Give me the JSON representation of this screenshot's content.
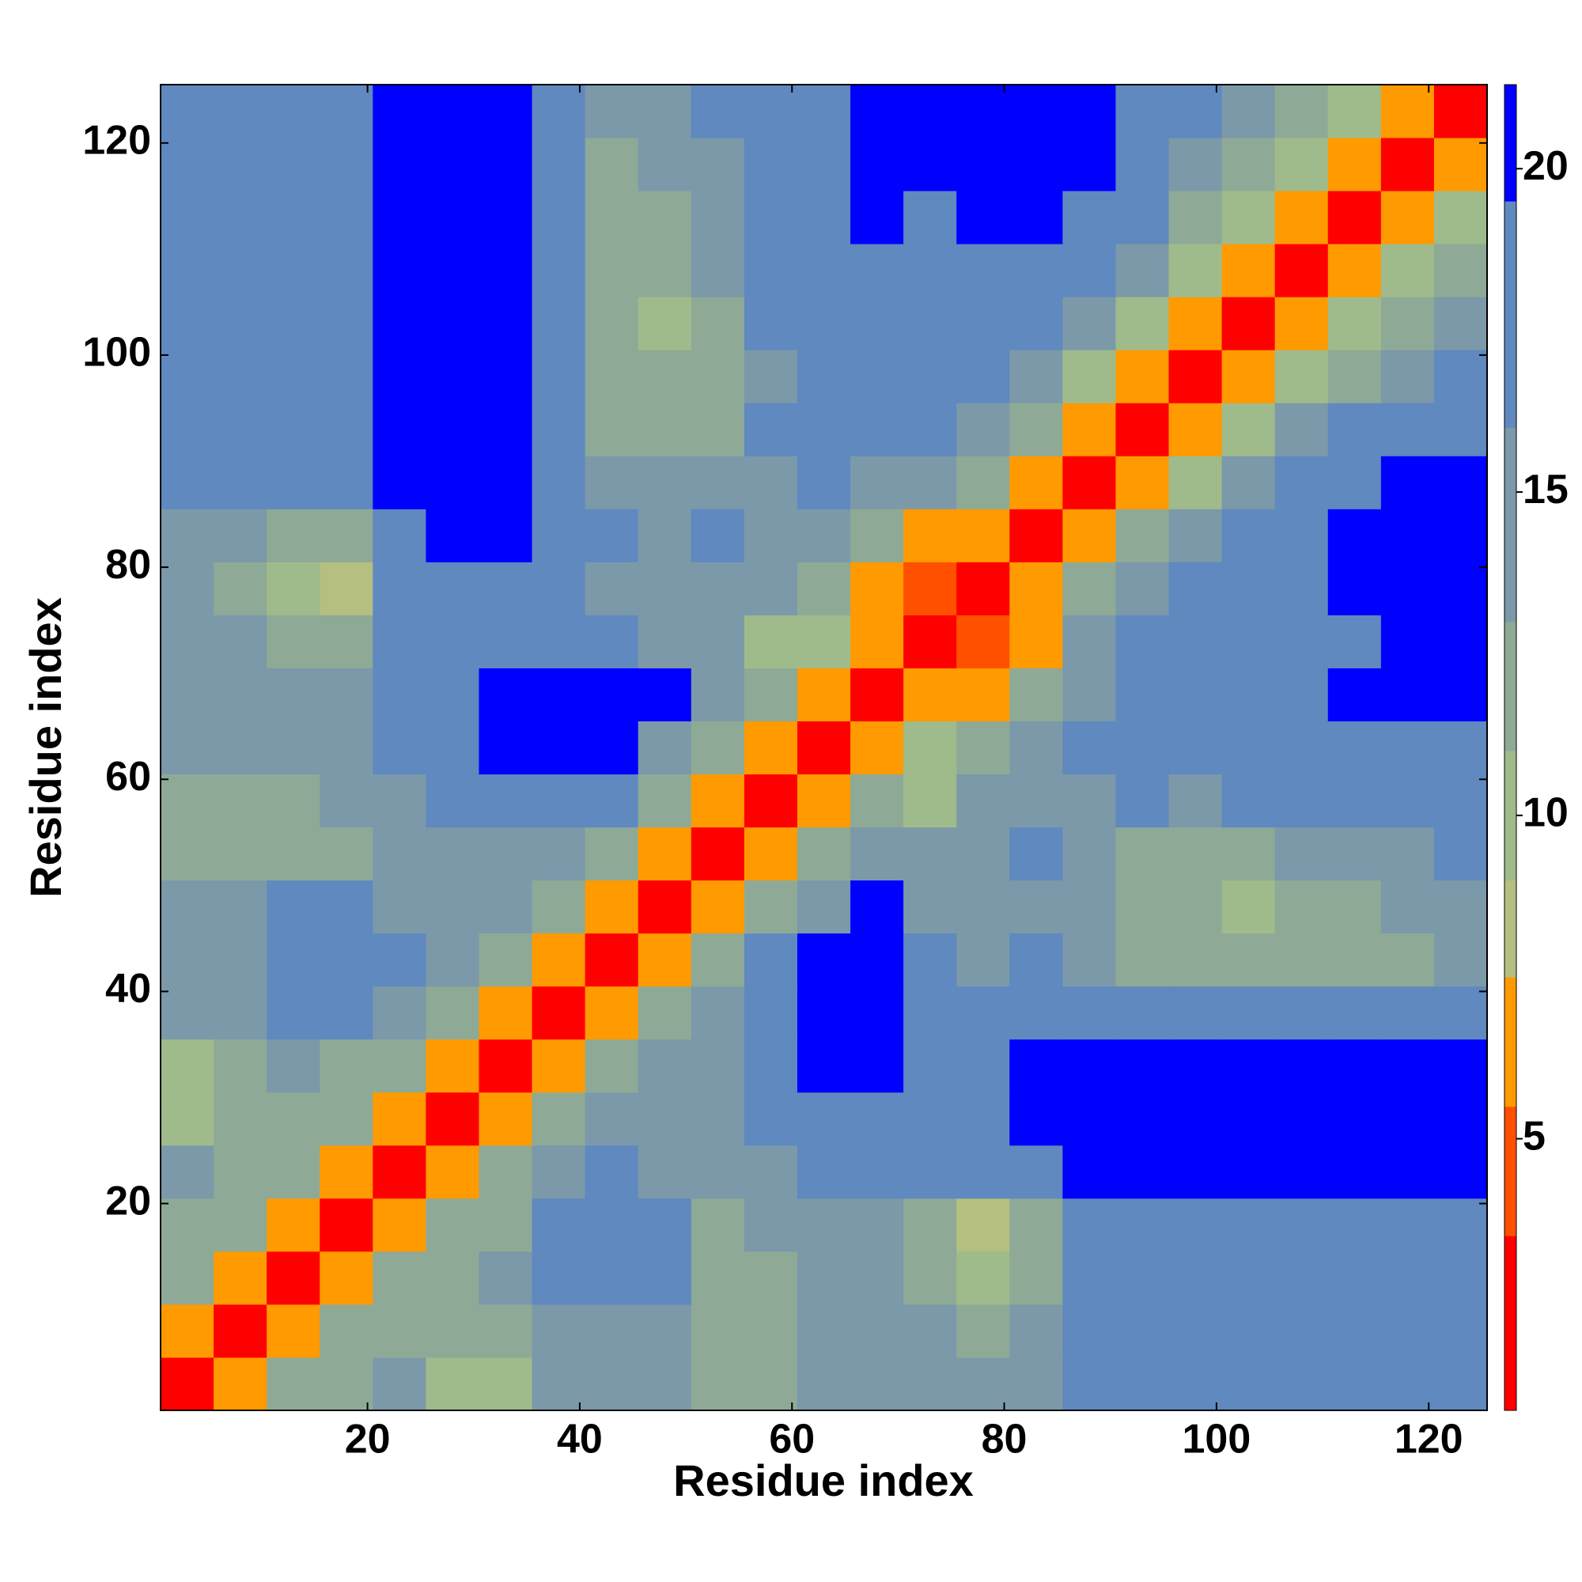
{
  "chart_data": {
    "type": "heatmap",
    "xlabel": "Residue index",
    "ylabel": "Residue index",
    "x": [
      3,
      8,
      13,
      18,
      23,
      28,
      33,
      38,
      43,
      48,
      53,
      58,
      63,
      68,
      73,
      78,
      83,
      88,
      93,
      98,
      103,
      108,
      113,
      118,
      123
    ],
    "y": [
      3,
      8,
      13,
      18,
      23,
      28,
      33,
      38,
      43,
      48,
      53,
      58,
      63,
      68,
      73,
      78,
      83,
      88,
      93,
      98,
      103,
      108,
      113,
      118,
      123
    ],
    "z": [
      [
        2,
        7,
        11,
        12,
        13,
        10,
        10,
        15,
        15,
        15,
        11,
        11,
        13,
        13,
        13,
        13,
        13,
        19,
        19,
        19,
        19,
        19,
        19,
        19,
        19
      ],
      [
        7,
        2,
        7,
        11,
        12,
        11,
        12,
        15,
        15,
        15,
        11,
        12,
        13,
        13,
        13,
        12,
        13,
        19,
        19,
        19,
        19,
        19,
        19,
        19,
        19
      ],
      [
        11,
        7,
        2,
        7,
        11,
        12,
        13,
        17,
        19,
        17,
        12,
        12,
        13,
        13,
        12,
        9,
        12,
        19,
        19,
        19,
        19,
        19,
        19,
        19,
        19
      ],
      [
        12,
        11,
        7,
        2,
        7,
        11,
        12,
        16,
        18,
        16,
        12,
        13,
        13,
        13,
        11,
        8,
        11,
        19,
        19,
        19,
        19,
        19,
        19,
        19,
        19
      ],
      [
        13,
        12,
        11,
        7,
        2,
        7,
        11,
        13,
        16,
        15,
        13,
        14,
        17,
        18,
        17,
        16,
        19,
        20,
        20,
        20,
        20,
        20,
        20,
        20,
        20
      ],
      [
        10,
        11,
        12,
        11,
        7,
        2,
        7,
        11,
        13,
        14,
        14,
        16,
        17,
        18,
        19,
        19,
        20,
        20,
        20,
        20,
        20,
        20,
        20,
        20,
        20
      ],
      [
        10,
        12,
        13,
        12,
        11,
        7,
        2,
        7,
        11,
        13,
        14,
        18,
        20,
        20,
        19,
        19,
        20,
        20,
        20,
        20,
        20,
        20,
        20,
        20,
        20
      ],
      [
        15,
        15,
        17,
        16,
        13,
        11,
        7,
        2,
        7,
        11,
        14,
        19,
        21,
        21,
        19,
        18,
        17,
        17,
        18,
        17,
        17,
        17,
        17,
        18,
        18
      ],
      [
        15,
        15,
        19,
        18,
        16,
        13,
        11,
        7,
        2,
        7,
        11,
        16,
        21,
        21,
        16,
        15,
        16,
        15,
        12,
        11,
        12,
        11,
        11,
        11,
        14
      ],
      [
        15,
        15,
        17,
        16,
        15,
        14,
        13,
        11,
        7,
        2,
        7,
        11,
        15,
        20,
        15,
        14,
        15,
        13,
        11,
        11,
        10,
        11,
        12,
        13,
        14
      ],
      [
        11,
        11,
        12,
        12,
        13,
        14,
        14,
        14,
        11,
        7,
        2,
        7,
        11,
        14,
        13,
        14,
        16,
        13,
        12,
        11,
        12,
        13,
        15,
        15,
        16
      ],
      [
        11,
        12,
        12,
        13,
        14,
        16,
        18,
        19,
        16,
        11,
        7,
        2,
        7,
        11,
        10,
        13,
        15,
        15,
        16,
        15,
        16,
        17,
        18,
        18,
        18
      ],
      [
        13,
        13,
        13,
        13,
        17,
        17,
        20,
        21,
        21,
        15,
        11,
        7,
        2,
        7,
        9,
        12,
        14,
        17,
        18,
        18,
        19,
        19,
        19,
        19,
        19
      ],
      [
        13,
        13,
        13,
        13,
        18,
        18,
        20,
        21,
        21,
        20,
        14,
        11,
        7,
        2,
        7,
        7,
        11,
        15,
        17,
        19,
        19,
        19,
        20,
        20,
        20
      ],
      [
        13,
        13,
        12,
        11,
        17,
        19,
        19,
        19,
        16,
        15,
        13,
        10,
        9,
        7,
        2,
        5,
        7,
        13,
        16,
        17,
        18,
        19,
        19,
        20,
        20
      ],
      [
        13,
        12,
        9,
        8,
        16,
        19,
        19,
        18,
        15,
        14,
        14,
        13,
        12,
        7,
        5,
        2,
        7,
        11,
        15,
        17,
        18,
        19,
        20,
        20,
        20
      ],
      [
        13,
        13,
        12,
        11,
        19,
        20,
        20,
        17,
        16,
        15,
        16,
        15,
        14,
        11,
        7,
        7,
        2,
        7,
        11,
        15,
        18,
        19,
        20,
        20,
        20
      ],
      [
        19,
        19,
        19,
        19,
        20,
        20,
        20,
        17,
        15,
        13,
        13,
        15,
        17,
        15,
        13,
        11,
        7,
        2,
        7,
        10,
        14,
        17,
        19,
        20,
        20
      ],
      [
        19,
        19,
        19,
        19,
        20,
        20,
        20,
        18,
        12,
        11,
        12,
        16,
        18,
        17,
        16,
        15,
        11,
        7,
        2,
        6,
        10,
        13,
        16,
        18,
        19
      ],
      [
        19,
        19,
        19,
        19,
        20,
        20,
        20,
        17,
        11,
        11,
        11,
        15,
        18,
        19,
        17,
        17,
        15,
        10,
        6,
        2,
        6,
        9,
        12,
        15,
        17
      ],
      [
        19,
        19,
        19,
        19,
        20,
        20,
        20,
        17,
        12,
        10,
        12,
        16,
        19,
        19,
        18,
        18,
        18,
        14,
        10,
        6,
        2,
        6,
        9,
        12,
        15
      ],
      [
        19,
        19,
        19,
        19,
        20,
        20,
        20,
        17,
        11,
        11,
        13,
        17,
        19,
        19,
        19,
        19,
        19,
        17,
        13,
        9,
        6,
        2,
        6,
        9,
        12
      ],
      [
        19,
        19,
        19,
        19,
        20,
        20,
        20,
        17,
        11,
        12,
        15,
        18,
        19,
        20,
        19,
        20,
        20,
        19,
        16,
        12,
        9,
        6,
        2,
        6,
        9
      ],
      [
        19,
        19,
        19,
        19,
        20,
        20,
        20,
        18,
        11,
        13,
        15,
        18,
        19,
        20,
        20,
        20,
        20,
        20,
        18,
        15,
        12,
        9,
        6,
        2,
        6
      ],
      [
        19,
        19,
        19,
        19,
        20,
        20,
        20,
        18,
        14,
        14,
        16,
        18,
        19,
        20,
        20,
        20,
        20,
        20,
        19,
        17,
        15,
        12,
        9,
        6,
        2
      ]
    ],
    "xlim": [
      0.5,
      125.5
    ],
    "ylim": [
      0.5,
      125.5
    ],
    "xticks": [
      20,
      40,
      60,
      80,
      100,
      120
    ],
    "yticks": [
      20,
      40,
      60,
      80,
      100,
      120
    ],
    "levels": [
      0.8,
      3.5,
      5.5,
      7.5,
      9,
      11,
      13,
      16,
      19.5,
      21.3
    ],
    "colors": [
      "#ff0000",
      "#ff5000",
      "#ff9a00",
      "#b4bf80",
      "#9fbb8c",
      "#8eaa96",
      "#7b99a8",
      "#5f89bf",
      "#0000ff"
    ],
    "cbar_ticks": [
      5,
      10,
      15,
      20
    ]
  }
}
